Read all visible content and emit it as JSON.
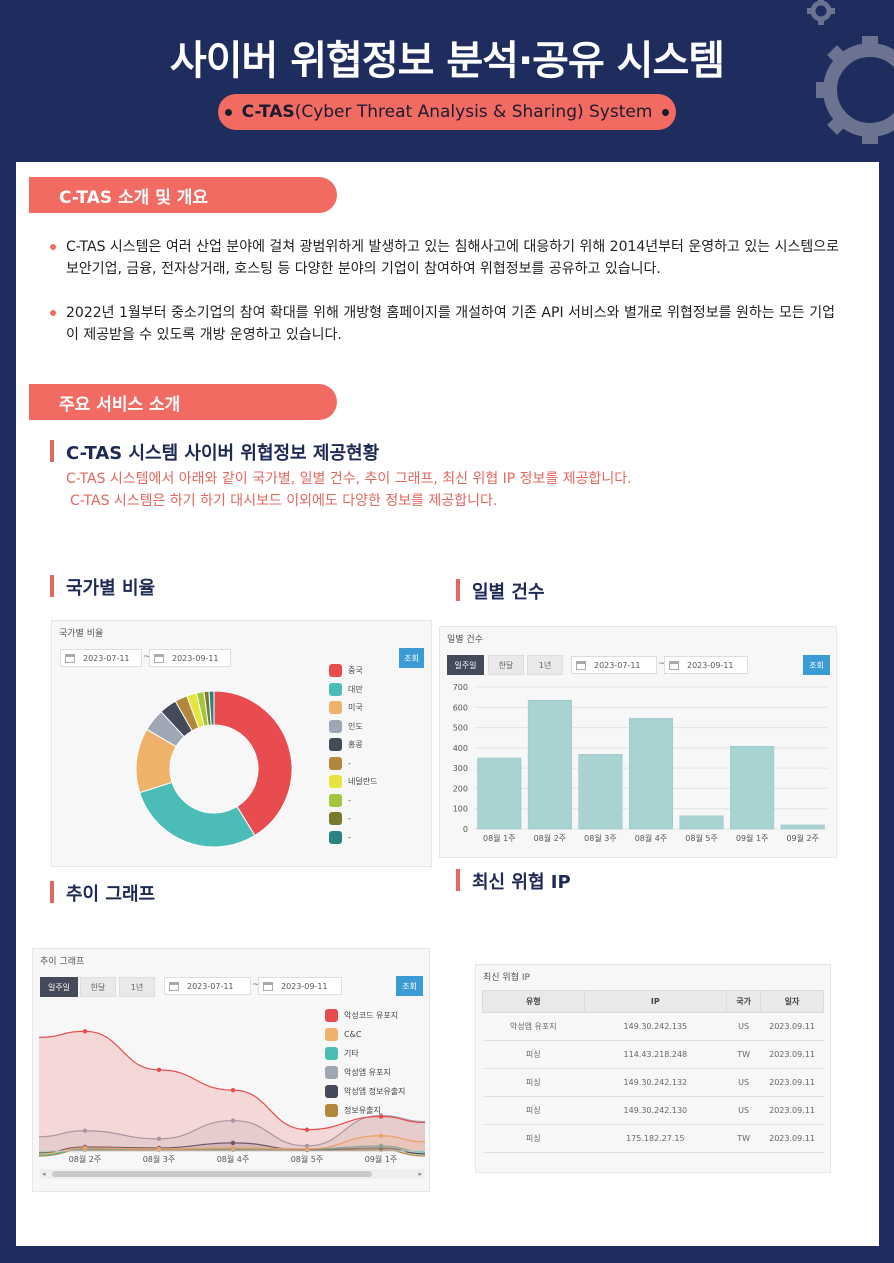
{
  "header": {
    "title": "사이버 위협정보 분석·공유 시스템",
    "subtitle_bold": "C-TAS",
    "subtitle_rest": "(Cyber Threat Analysis & Sharing) System"
  },
  "intro": {
    "section_title": "C-TAS 소개 및 개요",
    "bullets": [
      "C-TAS 시스템은 여러 산업 분야에 걸쳐 광범위하게 발생하고 있는 침해사고에 대응하기 위해 2014년부터 운영하고 있는 시스템으로 보안기업, 금융, 전자상거래, 호스팅 등 다양한 분야의 기업이 참여하여 위협정보를 공유하고 있습니다.",
      "2022년 1월부터 중소기업의 참여 확대를 위해 개방형 홈페이지를 개설하여 기존 API 서비스와 별개로 위협정보를 원하는 모든 기업이 제공받을 수 있도록 개방 운영하고 있습니다."
    ]
  },
  "services": {
    "section_title": "주요 서비스 소개",
    "heading": "C-TAS 시스템 사이버 위협정보 제공현황",
    "desc_line1": "C-TAS 시스템에서 아래와 같이 국가별, 일별 건수, 추이 그래프, 최신 위협 IP 정보를 제공합니다.",
    "desc_line2": "C-TAS 시스템은 하기 하기 대시보드 이외에도 다양한 정보를 제공합니다."
  },
  "country": {
    "heading": "국가별 비율",
    "panel_title": "국가별 비율",
    "date_from": "2023-07-11",
    "date_to": "2023-09-11",
    "tilde": "~",
    "query": "조회",
    "chart_data": {
      "type": "pie",
      "categories": [
        "중국",
        "대만",
        "미국",
        "인도",
        "홍콩",
        "-",
        "네덜란드",
        "-",
        "-",
        "-"
      ],
      "values": [
        40,
        28,
        13,
        4.5,
        3.5,
        2.5,
        2,
        1.5,
        1,
        1
      ],
      "colors": [
        "#e84c4f",
        "#4cbcb6",
        "#eeb26a",
        "#9ea7b3",
        "#444a5a",
        "#b0873c",
        "#e6e440",
        "#9fc63c",
        "#7a7a2e",
        "#2a8380"
      ]
    }
  },
  "daily": {
    "heading": "일별 건수",
    "panel_title": "일별 건수",
    "tabs": [
      "일주일",
      "한달",
      "1년"
    ],
    "date_from": "2023-07-11",
    "date_to": "2023-09-11",
    "tilde": "~",
    "query": "조회",
    "chart_data": {
      "type": "bar",
      "categories": [
        "08월 1주",
        "08월 2주",
        "08월 3주",
        "08월 4주",
        "08월 5주",
        "09월 1주",
        "09월 2주"
      ],
      "values": [
        350,
        635,
        368,
        545,
        65,
        408,
        20
      ],
      "ylim": [
        0,
        700
      ],
      "yticks": [
        "0",
        "100",
        "200",
        "300",
        "400",
        "500",
        "600",
        "700"
      ],
      "color": "#a9d2d3"
    }
  },
  "trend": {
    "heading": "추이 그래프",
    "panel_title": "추이 그래프",
    "tabs": [
      "일주일",
      "한달",
      "1년"
    ],
    "date_from": "2023-07-11",
    "date_to": "2023-09-11",
    "tilde": "~",
    "query": "조회",
    "chart_data": {
      "type": "area",
      "x": [
        "08월 2주",
        "08월 3주",
        "08월 4주",
        "08월 5주",
        "09월 1주"
      ],
      "series": [
        {
          "name": "악성코드 유포지",
          "color": "#e84c4f",
          "values": [
            118,
            80,
            60,
            21,
            34
          ]
        },
        {
          "name": "C&C",
          "color": "#eeb26a",
          "values": [
            3,
            2,
            3,
            2,
            15
          ]
        },
        {
          "name": "기타",
          "color": "#4cbcb6",
          "values": [
            2,
            2,
            2,
            2,
            5
          ]
        },
        {
          "name": "악성앱 유포지",
          "color": "#9ea7b3",
          "values": [
            20,
            12,
            30,
            5,
            35
          ]
        },
        {
          "name": "악성앱 정보유출지",
          "color": "#444a5a",
          "values": [
            4,
            3,
            8,
            1,
            3
          ]
        },
        {
          "name": "정보유출지",
          "color": "#b0873c",
          "values": [
            1,
            1,
            1,
            1,
            1
          ]
        }
      ],
      "ylim": [
        0,
        140
      ]
    }
  },
  "latest_ip": {
    "heading": "최신 위협 IP",
    "panel_title": "최신 위협 IP",
    "columns": [
      "유형",
      "IP",
      "국가",
      "일자"
    ],
    "rows": [
      [
        "악성앱 유포지",
        "149.30.242.135",
        "US",
        "2023.09.11"
      ],
      [
        "피싱",
        "114.43.218.248",
        "TW",
        "2023.09.11"
      ],
      [
        "피싱",
        "149.30.242.132",
        "US",
        "2023.09.11"
      ],
      [
        "피싱",
        "149.30.242.130",
        "US",
        "2023.09.11"
      ],
      [
        "피싱",
        "175.182.27.15",
        "TW",
        "2023.09.11"
      ]
    ]
  }
}
